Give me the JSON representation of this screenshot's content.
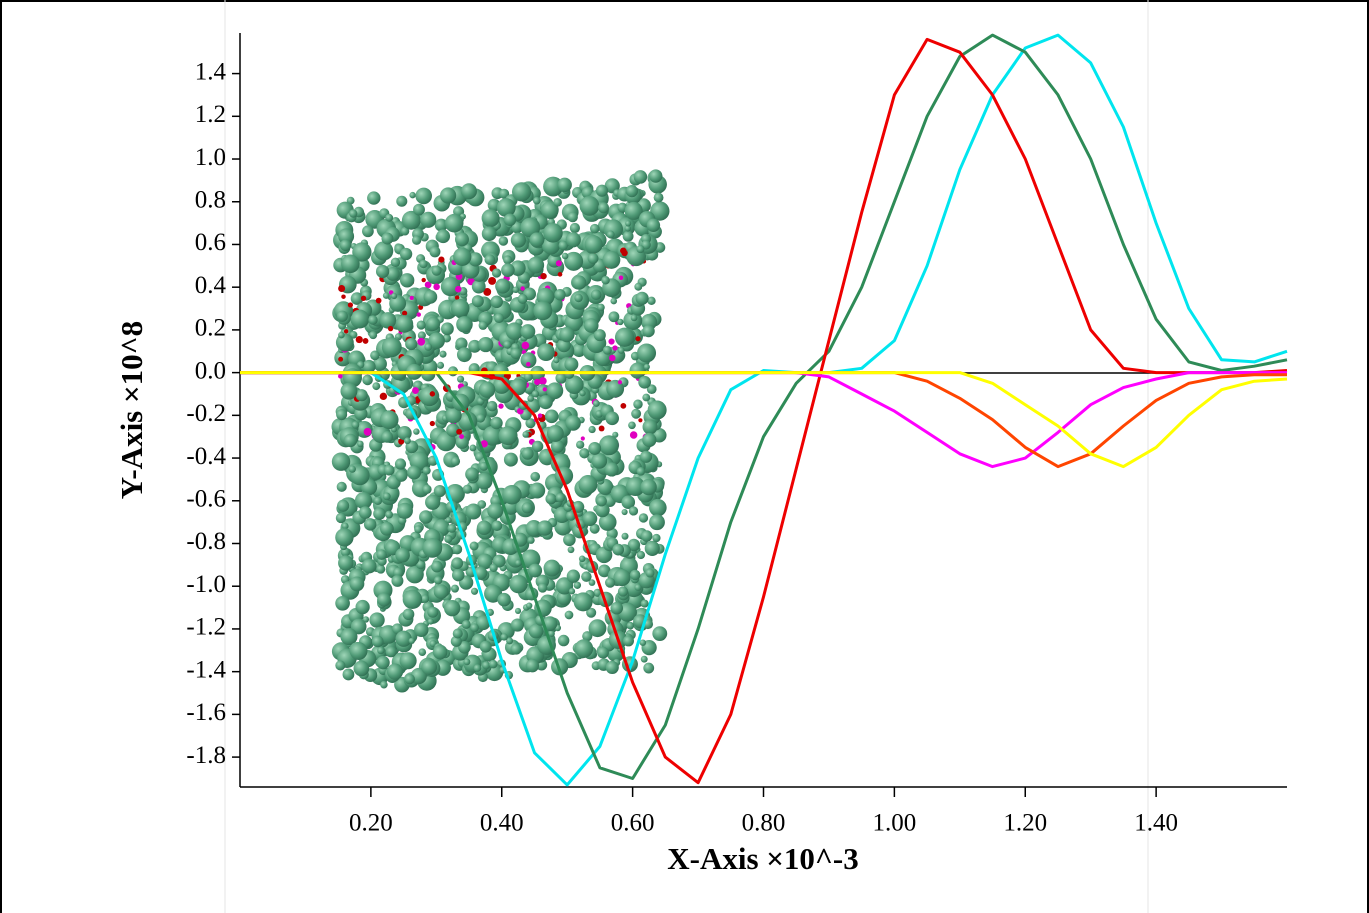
{
  "chart_data": {
    "type": "line",
    "xlabel": "X-Axis ×10^-3",
    "ylabel": "Y-Axis ×10^8",
    "xlim": [
      0,
      1.6
    ],
    "ylim": [
      -1.94,
      1.59
    ],
    "xticks": [
      {
        "value": 0.2,
        "label": "0.20"
      },
      {
        "value": 0.4,
        "label": "0.40"
      },
      {
        "value": 0.6,
        "label": "0.60"
      },
      {
        "value": 0.8,
        "label": "0.80"
      },
      {
        "value": 1.0,
        "label": "1.00"
      },
      {
        "value": 1.2,
        "label": "1.20"
      },
      {
        "value": 1.4,
        "label": "1.40"
      }
    ],
    "yticks": [
      -1.8,
      -1.6,
      -1.4,
      -1.2,
      {
        "value": -1.0,
        "label": "-1.0"
      },
      -0.8,
      -0.6,
      -0.4,
      -0.2,
      {
        "value": 0,
        "label": "0.0"
      },
      0.2,
      0.4,
      0.6,
      0.8,
      {
        "value": 1.0,
        "label": "1.0"
      },
      1.2,
      1.4
    ],
    "x": [
      0,
      0.05,
      0.1,
      0.15,
      0.2,
      0.25,
      0.3,
      0.35,
      0.4,
      0.45,
      0.5,
      0.55,
      0.6,
      0.65,
      0.7,
      0.75,
      0.8,
      0.85,
      0.9,
      0.95,
      1.0,
      1.05,
      1.1,
      1.15,
      1.2,
      1.25,
      1.3,
      1.35,
      1.4,
      1.45,
      1.5,
      1.55,
      1.6
    ],
    "series": [
      {
        "color": "#00e5ee",
        "values": [
          0,
          0,
          0,
          0,
          0,
          -0.1,
          -0.4,
          -0.85,
          -1.35,
          -1.78,
          -1.93,
          -1.75,
          -1.35,
          -0.85,
          -0.4,
          -0.08,
          0.01,
          0,
          0,
          0.02,
          0.15,
          0.5,
          0.95,
          1.3,
          1.52,
          1.58,
          1.45,
          1.15,
          0.7,
          0.3,
          0.06,
          0.05,
          0.1
        ]
      },
      {
        "color": "#2e8b57",
        "values": [
          0,
          0,
          0,
          0,
          0,
          0,
          0,
          -0.2,
          -0.6,
          -1.05,
          -1.5,
          -1.85,
          -1.9,
          -1.65,
          -1.2,
          -0.7,
          -0.3,
          -0.05,
          0.1,
          0.4,
          0.8,
          1.2,
          1.48,
          1.58,
          1.5,
          1.3,
          1.0,
          0.6,
          0.25,
          0.05,
          0.01,
          0.03,
          0.06
        ]
      },
      {
        "color": "#ee0000",
        "values": [
          0,
          0,
          0,
          0,
          0,
          0,
          0,
          0,
          -0.03,
          -0.2,
          -0.55,
          -1.0,
          -1.45,
          -1.8,
          -1.92,
          -1.6,
          -1.05,
          -0.45,
          0.15,
          0.75,
          1.3,
          1.56,
          1.5,
          1.3,
          1.0,
          0.6,
          0.2,
          0.02,
          0,
          0,
          0,
          0,
          0.01
        ]
      },
      {
        "color": "#ff00ff",
        "values": [
          0,
          0,
          0,
          0,
          0,
          0,
          0,
          0,
          0,
          0,
          0,
          0,
          0,
          0,
          0,
          0,
          0,
          0,
          -0.02,
          -0.1,
          -0.18,
          -0.28,
          -0.38,
          -0.44,
          -0.4,
          -0.28,
          -0.15,
          -0.07,
          -0.03,
          0,
          0,
          0,
          0
        ]
      },
      {
        "color": "#ff4500",
        "values": [
          0,
          0,
          0,
          0,
          0,
          0,
          0,
          0,
          0,
          0,
          0,
          0,
          0,
          0,
          0,
          0,
          0,
          0,
          0,
          0,
          0,
          -0.04,
          -0.12,
          -0.22,
          -0.35,
          -0.44,
          -0.38,
          -0.25,
          -0.13,
          -0.05,
          -0.02,
          -0.01,
          -0.01
        ]
      },
      {
        "color": "#ffff00",
        "values": [
          0,
          0,
          0,
          0,
          0,
          0,
          0,
          0,
          0,
          0,
          0,
          0,
          0,
          0,
          0,
          0,
          0,
          0,
          0,
          0,
          0,
          0,
          0,
          -0.05,
          -0.15,
          -0.25,
          -0.38,
          -0.44,
          -0.35,
          -0.2,
          -0.08,
          -0.04,
          -0.03
        ]
      }
    ]
  }
}
